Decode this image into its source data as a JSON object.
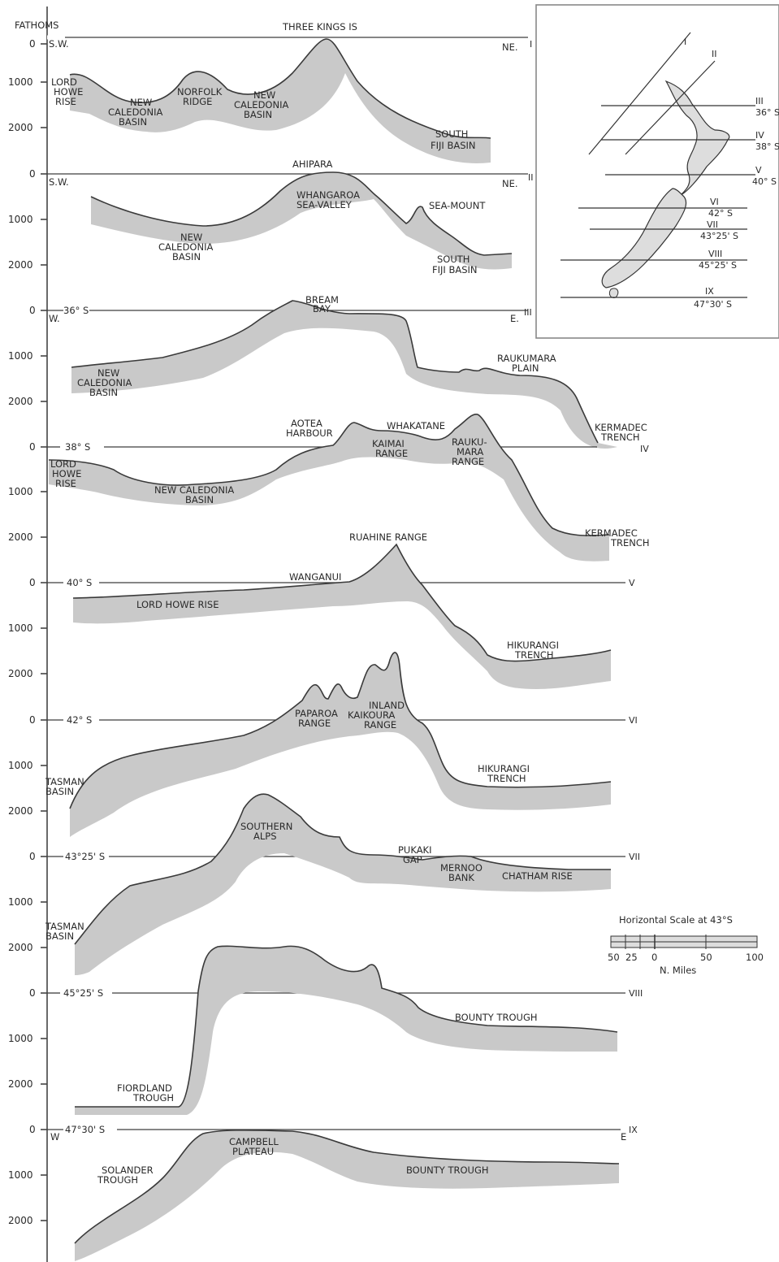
{
  "axis": {
    "title": "FATHOMS",
    "ticks": [
      "0",
      "1000",
      "2000",
      "0",
      "1000",
      "2000",
      "0",
      "1000",
      "2000",
      "0",
      "1000",
      "2000",
      "0",
      "1000",
      "2000",
      "0",
      "1000",
      "2000",
      "0",
      "1000",
      "2000",
      "0",
      "1000",
      "2000",
      "0",
      "1000",
      "2000"
    ]
  },
  "profiles": [
    {
      "id": "I",
      "roman": "I",
      "west": "S.W.",
      "east": "NE.",
      "labels": [
        "THREE KINGS IS",
        "LORD\nHOWE\nRISE",
        "NEW\nCALEDONIA\nBASIN",
        "NORFOLK\nRIDGE",
        "NEW\nCALEDONIA\nBASIN",
        "SOUTH\nFIJI BASIN"
      ]
    },
    {
      "id": "II",
      "roman": "II",
      "west": "S.W.",
      "east": "NE.",
      "labels": [
        "AHIPARA",
        "WHANGAROA\nSEA-VALLEY",
        "SEA-MOUNT",
        "NEW\nCALEDONIA\nBASIN",
        "SOUTH\nFIJI BASIN"
      ]
    },
    {
      "id": "III",
      "roman": "III",
      "west": "W.",
      "east": "E.",
      "lat": "36° S",
      "labels": [
        "BREAM\nBAY",
        "NEW\nCALEDONIA\nBASIN",
        "RAUKUMARA\nPLAIN",
        "KERMADEC\nTRENCH"
      ]
    },
    {
      "id": "IV",
      "roman": "IV",
      "lat": "38° S",
      "labels": [
        "AOTEA\nHARBOUR",
        "WHAKATANE",
        "KAIMAI\nRANGE",
        "RAUKU-\nMARA\nRANGE",
        "LORD\nHOWE\nRISE",
        "NEW CALEDONIA\nBASIN",
        "KERMADEC\nTRENCH"
      ]
    },
    {
      "id": "V",
      "roman": "V",
      "lat": "40° S",
      "labels": [
        "RUAHINE RANGE",
        "WANGANUI",
        "LORD HOWE RISE",
        "HIKURANGI\nTRENCH"
      ]
    },
    {
      "id": "VI",
      "roman": "VI",
      "lat": "42° S",
      "labels": [
        "PAPAROA\nRANGE",
        "INLAND\nKAIKOURA\nRANGE",
        "TASMAN\nBASIN",
        "HIKURANGI\nTRENCH"
      ]
    },
    {
      "id": "VII",
      "roman": "VII",
      "lat": "43°25' S",
      "labels": [
        "SOUTHERN\nALPS",
        "PUKAKI\nGAP",
        "MERNOO\nBANK",
        "CHATHAM RISE",
        "TASMAN\nBASIN"
      ]
    },
    {
      "id": "VIII",
      "roman": "VIII",
      "lat": "45°25' S",
      "labels": [
        "BOUNTY TROUGH",
        "FIORDLAND\nTROUGH"
      ]
    },
    {
      "id": "IX",
      "roman": "IX",
      "west": "W",
      "east": "E",
      "lat": "47°30' S",
      "labels": [
        "CAMPBELL\nPLATEAU",
        "SOLANDER\nTROUGH",
        "BOUNTY TROUGH"
      ]
    }
  ],
  "inset_map": {
    "lines": [
      {
        "roman": "I",
        "lat": ""
      },
      {
        "roman": "II",
        "lat": ""
      },
      {
        "roman": "III",
        "lat": "36° S"
      },
      {
        "roman": "IV",
        "lat": "38° S"
      },
      {
        "roman": "V",
        "lat": "40° S"
      },
      {
        "roman": "VI",
        "lat": "42° S"
      },
      {
        "roman": "VII",
        "lat": "43°25' S"
      },
      {
        "roman": "VIII",
        "lat": "45°25' S"
      },
      {
        "roman": "IX",
        "lat": "47°30' S"
      }
    ]
  },
  "scale_bar": {
    "title": "Horizontal Scale at 43°S",
    "ticks": [
      "50",
      "25",
      "0",
      "50",
      "100"
    ],
    "unit": "N. Miles"
  }
}
